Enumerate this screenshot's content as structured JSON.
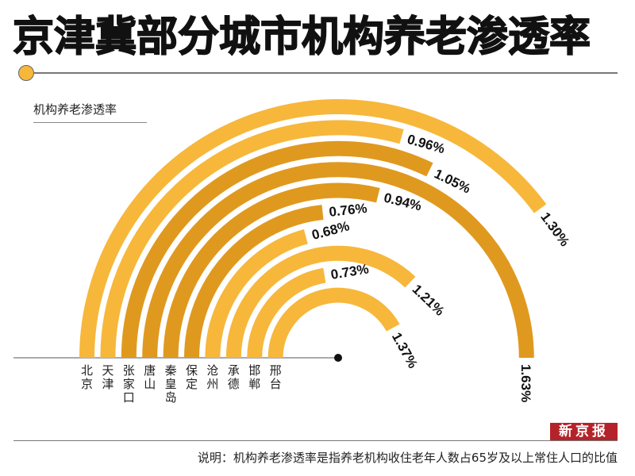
{
  "title": "京津冀部分城市机构养老渗透率",
  "subtitle": "机构养老渗透率",
  "logo": "新京报",
  "note": "说明：机构养老渗透率是指养老机构收住老年人数占65岁及以上常住人口的比值",
  "colors": {
    "light": "#F7B73B",
    "dark": "#E0991F",
    "logo_bg": "#B4232A"
  },
  "chart_data": {
    "type": "bar",
    "subtype": "radial-bar",
    "title": "京津冀部分城市机构养老渗透率",
    "ylabel": "机构养老渗透率",
    "unit": "%",
    "max_value": 1.63,
    "categories": [
      "北京",
      "天津",
      "张家口",
      "唐山",
      "秦皇岛",
      "保定",
      "沧州",
      "承德",
      "邯郸",
      "邢台"
    ],
    "values": [
      1.3,
      0.96,
      1.05,
      1.63,
      0.94,
      0.76,
      0.68,
      1.21,
      0.73,
      1.37
    ],
    "labels": [
      "1.30%",
      "0.96%",
      "1.05%",
      "1.63%",
      "0.94%",
      "0.76%",
      "0.68%",
      "1.21%",
      "0.73%",
      "1.37%"
    ],
    "color_keys": [
      "light",
      "light",
      "dark",
      "dark",
      "dark",
      "dark",
      "light",
      "light",
      "light",
      "light"
    ]
  }
}
